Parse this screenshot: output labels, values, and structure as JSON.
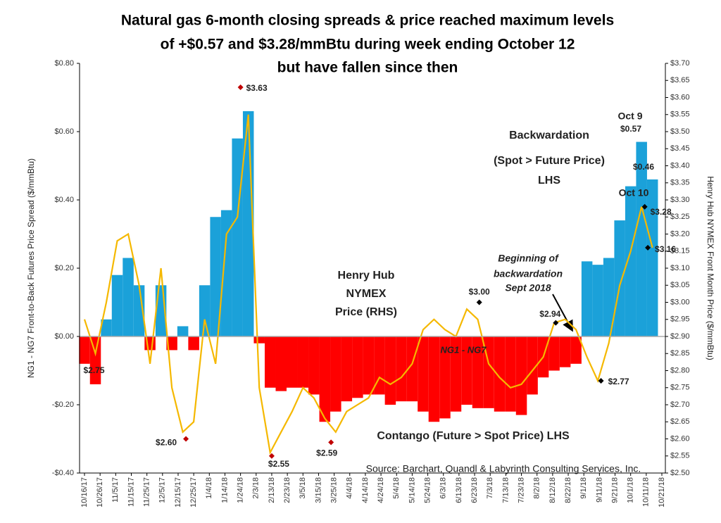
{
  "chart_data": {
    "type": "bar-line",
    "title": [
      "Natural gas 6-month closing spreads & price reached maximum levels",
      "of +$0.57 and $3.28/mmBtu during week ending October 12",
      "but have fallen since then"
    ],
    "y_label": "NG1 - NG7 Front-to-Back Futures Price Spread ($/mmBtu)",
    "y2_label": "Henry Hub NYMEX Front Month Price ($/mmBtu)",
    "x": [
      "10/16/17",
      "10/23/17",
      "10/30/17",
      "11/6/17",
      "11/13/17",
      "11/20/17",
      "11/27/17",
      "12/4/17",
      "12/11/17",
      "12/18/17",
      "12/25/17",
      "1/1/18",
      "1/8/18",
      "1/15/18",
      "1/22/18",
      "1/29/18",
      "2/5/18",
      "2/12/18",
      "2/19/18",
      "2/26/18",
      "3/5/18",
      "3/12/18",
      "3/19/18",
      "3/26/18",
      "4/2/18",
      "4/9/18",
      "4/16/18",
      "4/23/18",
      "4/30/18",
      "5/7/18",
      "5/14/18",
      "5/21/18",
      "5/28/18",
      "6/4/18",
      "6/11/18",
      "6/18/18",
      "6/25/18",
      "7/2/18",
      "7/9/18",
      "7/16/18",
      "7/23/18",
      "7/30/18",
      "8/6/18",
      "8/13/18",
      "8/20/18",
      "8/27/18",
      "9/3/18",
      "9/10/18",
      "9/17/18",
      "9/24/18",
      "10/1/18",
      "10/8/18",
      "10/15/18"
    ],
    "series": [
      {
        "name": "NG1 - NG7",
        "type": "bar",
        "color": "#1ba1d9",
        "negative_color": "#ff0000",
        "values": [
          -0.08,
          -0.14,
          0.05,
          0.18,
          0.23,
          0.15,
          -0.04,
          0.15,
          -0.04,
          0.03,
          -0.04,
          0.15,
          0.35,
          0.37,
          0.58,
          0.66,
          -0.02,
          -0.15,
          -0.16,
          -0.15,
          -0.15,
          -0.17,
          -0.25,
          -0.22,
          -0.19,
          -0.18,
          -0.17,
          -0.17,
          -0.2,
          -0.19,
          -0.19,
          -0.22,
          -0.25,
          -0.24,
          -0.22,
          -0.2,
          -0.21,
          -0.21,
          -0.22,
          -0.22,
          -0.23,
          -0.17,
          -0.12,
          -0.1,
          -0.09,
          -0.08,
          0.22,
          0.21,
          0.23,
          0.34,
          0.44,
          0.57,
          0.46
        ]
      },
      {
        "name": "Henry Hub NYMEX Price",
        "type": "line",
        "axis": "y2",
        "color": "#f5b800",
        "values": [
          2.95,
          2.85,
          3.0,
          3.18,
          3.2,
          3.05,
          2.82,
          3.1,
          2.75,
          2.62,
          2.65,
          2.95,
          2.82,
          3.2,
          3.25,
          3.55,
          2.75,
          2.56,
          2.62,
          2.68,
          2.75,
          2.72,
          2.66,
          2.62,
          2.68,
          2.7,
          2.72,
          2.78,
          2.76,
          2.78,
          2.82,
          2.92,
          2.95,
          2.92,
          2.9,
          2.98,
          2.95,
          2.82,
          2.78,
          2.75,
          2.76,
          2.8,
          2.84,
          2.94,
          2.95,
          2.92,
          2.84,
          2.77,
          2.88,
          3.05,
          3.15,
          3.28,
          3.16
        ]
      }
    ],
    "points": [
      {
        "x": "1/24/18",
        "value": 3.63,
        "label": "$3.63",
        "color": "#c00000"
      },
      {
        "x": "10/23/17",
        "value": 2.75,
        "label": "$2.75",
        "color": "#000000"
      },
      {
        "x": "12/20/17",
        "value": 2.6,
        "label": "$2.60",
        "color": "#c00000"
      },
      {
        "x": "2/13/18",
        "value": 2.55,
        "label": "$2.55",
        "color": "#c00000"
      },
      {
        "x": "3/23/18",
        "value": 2.59,
        "label": "$2.59",
        "color": "#c00000"
      },
      {
        "x": "6/26/18",
        "value": 3.0,
        "label": "$3.00",
        "color": "#000000"
      },
      {
        "x": "8/14/18",
        "value": 2.94,
        "label": "$2.94",
        "color": "#000000"
      },
      {
        "x": "9/12/18",
        "value": 2.77,
        "label": "$2.77",
        "color": "#000000"
      },
      {
        "x": "10/10/18",
        "value": 3.28,
        "label": "$3.28",
        "color": "#000000"
      },
      {
        "x": "10/12/18",
        "value": 3.16,
        "label": "$3.16",
        "color": "#000000"
      }
    ],
    "annotations": [
      "Henry Hub",
      "NYMEX",
      "Price (RHS)",
      "Backwardation",
      "(Spot > Future Price)",
      "LHS",
      "Contango (Future > Spot Price) LHS",
      "NG1 - NG7",
      "Beginning of",
      "backwardation",
      "Sept 2018",
      "Oct 9",
      "$0.57",
      "$0.46",
      "Oct 10",
      "Source: Barchart, Quandl & Labyrinth Consulting Services, Inc."
    ],
    "xlim": [
      "10/16/17",
      "10/21/18"
    ],
    "xticks": [
      "10/16/17",
      "10/26/17",
      "11/5/17",
      "11/15/17",
      "11/25/17",
      "12/5/17",
      "12/15/17",
      "12/25/17",
      "1/4/18",
      "1/14/18",
      "1/24/18",
      "2/3/18",
      "2/13/18",
      "2/23/18",
      "3/5/18",
      "3/15/18",
      "3/25/18",
      "4/4/18",
      "4/14/18",
      "4/24/18",
      "5/4/18",
      "5/14/18",
      "5/24/18",
      "6/3/18",
      "6/13/18",
      "6/23/18",
      "7/3/18",
      "7/13/18",
      "7/23/18",
      "8/2/18",
      "8/12/18",
      "8/22/18",
      "9/1/18",
      "9/11/18",
      "9/21/18",
      "10/1/18",
      "10/11/18",
      "10/21/18"
    ],
    "ylim": [
      -0.4,
      0.8
    ],
    "yticks": [
      {
        "value": -0.4,
        "label": "-$0.40"
      },
      {
        "value": -0.2,
        "label": "-$0.20"
      },
      {
        "value": 0,
        "label": "$0.00"
      },
      {
        "value": 0.2,
        "label": "$0.20"
      },
      {
        "value": 0.4,
        "label": "$0.40"
      },
      {
        "value": 0.6,
        "label": "$0.60"
      },
      {
        "value": 0.8,
        "label": "$0.80"
      }
    ],
    "y2lim": [
      2.5,
      3.7
    ],
    "y2ticks": [
      {
        "value": 2.5,
        "label": "$2.50"
      },
      {
        "value": 2.55,
        "label": "$2.55"
      },
      {
        "value": 2.6,
        "label": "$2.60"
      },
      {
        "value": 2.65,
        "label": "$2.65"
      },
      {
        "value": 2.7,
        "label": "$2.70"
      },
      {
        "value": 2.75,
        "label": "$2.75"
      },
      {
        "value": 2.8,
        "label": "$2.80"
      },
      {
        "value": 2.85,
        "label": "$2.85"
      },
      {
        "value": 2.9,
        "label": "$2.90"
      },
      {
        "value": 2.95,
        "label": "$2.95"
      },
      {
        "value": 3.0,
        "label": "$3.00"
      },
      {
        "value": 3.05,
        "label": "$3.05"
      },
      {
        "value": 3.1,
        "label": "$3.10"
      },
      {
        "value": 3.15,
        "label": "$3.15"
      },
      {
        "value": 3.2,
        "label": "$3.20"
      },
      {
        "value": 3.25,
        "label": "$3.25"
      },
      {
        "value": 3.3,
        "label": "$3.30"
      },
      {
        "value": 3.35,
        "label": "$3.35"
      },
      {
        "value": 3.4,
        "label": "$3.40"
      },
      {
        "value": 3.45,
        "label": "$3.45"
      },
      {
        "value": 3.5,
        "label": "$3.50"
      },
      {
        "value": 3.55,
        "label": "$3.55"
      },
      {
        "value": 3.6,
        "label": "$3.60"
      },
      {
        "value": 3.65,
        "label": "$3.65"
      },
      {
        "value": 3.7,
        "label": "$3.70"
      }
    ]
  }
}
